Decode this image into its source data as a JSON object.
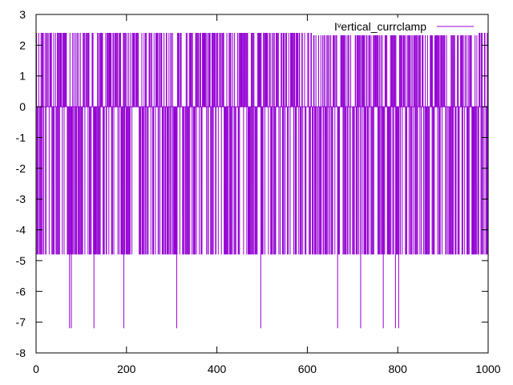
{
  "chart_data": {
    "type": "line",
    "title": "",
    "xlabel": "",
    "ylabel": "",
    "xlim": [
      0,
      1000
    ],
    "ylim": [
      -8,
      3
    ],
    "x_ticks": [
      0,
      200,
      400,
      600,
      800,
      1000
    ],
    "y_ticks": [
      -8,
      -7,
      -6,
      -5,
      -4,
      -3,
      -2,
      -1,
      0,
      1,
      2,
      3
    ],
    "grid": false,
    "legend_position": "top-right",
    "colors": {
      "series": "#9400d3",
      "axis": "#000000",
      "background": "#ffffff"
    },
    "series": [
      {
        "name": "Iᵛertical_currclamp",
        "pattern": "square pulse train alternating between the 0 baseline and a negative level, with frequent spikes up to ~2.4 and occasional dips to ~-7.2",
        "baseline": 0,
        "high": 2.4,
        "low": -4.8,
        "dip_low": -7.2,
        "dip_x": [
          74,
          78,
          128,
          194,
          311,
          497,
          667,
          718,
          768,
          795,
          802
        ],
        "x_range": [
          0,
          1000
        ]
      }
    ]
  }
}
